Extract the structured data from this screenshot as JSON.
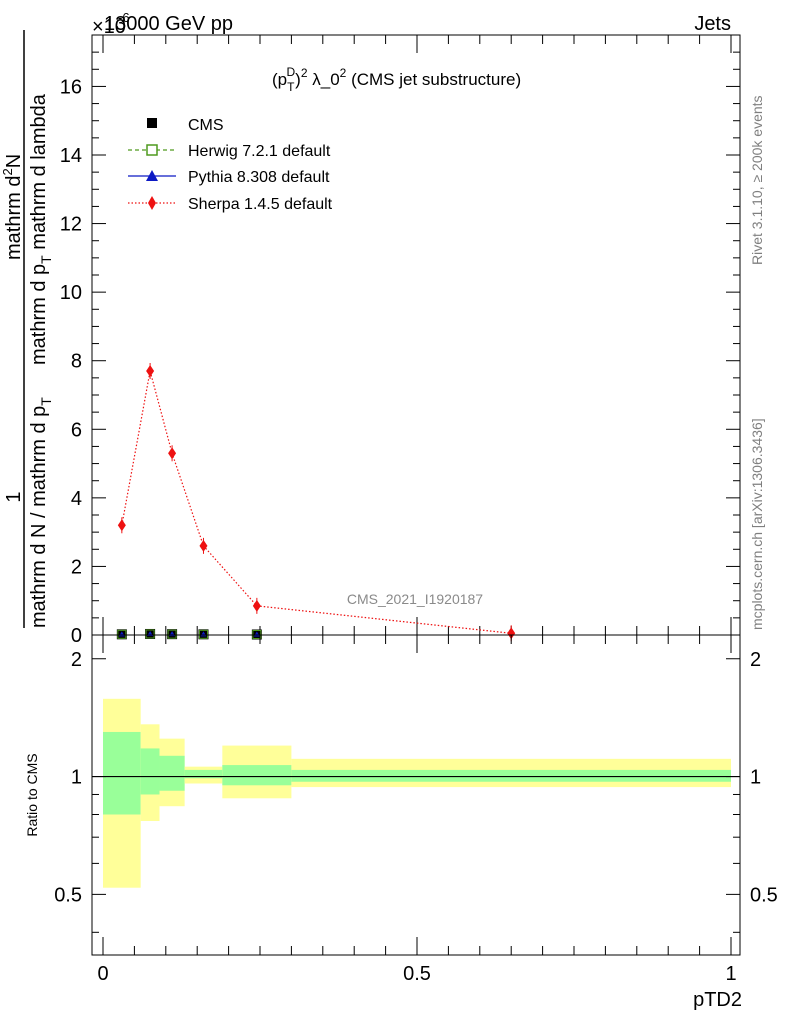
{
  "header": {
    "energy_label": "13000 GeV pp",
    "process_label": "Jets",
    "exponent_label": "×10",
    "exponent_power": "-6"
  },
  "side_labels": {
    "rivet": "Rivet 3.1.10, ≥ 200k events",
    "mcplots": "mcplots.cern.ch [arXiv:1306.3436]"
  },
  "chart_data": {
    "type": "line",
    "title": "(p_T^D)^2 λ_0^2 (CMS jet substructure)",
    "title_parts": {
      "p": "(p",
      "sub_t": "T",
      "sup_d": "D",
      "close": ")",
      "sq1": "2",
      "lambda": "λ_0",
      "sq2": "2",
      "rest": "(CMS jet substructure)"
    },
    "watermark": "CMS_2021_I1920187",
    "xlabel": "pTD2",
    "ylabel": "1 / mathrm d N / mathrm d p_T mathrm d^2N / mathrm d p_T mathrm d lambda",
    "ylabel_parts": {
      "num_one": "1",
      "den": "mathrm d N / mathrm d p",
      "den_sub": "T",
      "den2": "mathrm d p",
      "den2_sub": "T",
      "den2_rest": "mathrm d lambda",
      "num_prefix": "mathrm d",
      "num_sup": "2",
      "num_suffix": "N"
    },
    "xlim": [
      0,
      1
    ],
    "ylim": [
      0,
      17.5
    ],
    "x_ticks": [
      "0",
      "0.5",
      "1"
    ],
    "y_ticks": [
      "0",
      "2",
      "4",
      "6",
      "8",
      "10",
      "12",
      "14",
      "16"
    ],
    "legend": [
      {
        "name": "CMS",
        "marker": "square-filled",
        "color": "#000000"
      },
      {
        "name": "Herwig 7.2.1 default",
        "marker": "square-open",
        "color": "#4f9a1f"
      },
      {
        "name": "Pythia 8.308 default",
        "marker": "triangle",
        "color": "#0c19c4"
      },
      {
        "name": "Sherpa 1.4.5 default",
        "marker": "diamond",
        "color": "#ee1111"
      }
    ],
    "series": [
      {
        "name": "CMS",
        "x": [
          0.03,
          0.075,
          0.11,
          0.16,
          0.245
        ],
        "values": [
          0.02,
          0.03,
          0.025,
          0.02,
          0.015
        ]
      },
      {
        "name": "Herwig 7.2.1 default",
        "x": [
          0.03,
          0.075,
          0.11,
          0.16,
          0.245
        ],
        "values": [
          0.02,
          0.03,
          0.025,
          0.02,
          0.015
        ]
      },
      {
        "name": "Pythia 8.308 default",
        "x": [
          0.03,
          0.075,
          0.11,
          0.16,
          0.245
        ],
        "values": [
          0.02,
          0.03,
          0.025,
          0.02,
          0.015
        ]
      },
      {
        "name": "Sherpa 1.4.5 default",
        "x": [
          0.03,
          0.075,
          0.11,
          0.16,
          0.245,
          0.65
        ],
        "values": [
          3.2,
          7.7,
          5.3,
          2.6,
          0.85,
          0.05
        ]
      }
    ],
    "ratio": {
      "ylabel": "Ratio to CMS",
      "ylim": [
        0.35,
        2.3
      ],
      "y_ticks": [
        "0.5",
        "1",
        "2"
      ],
      "bins": [
        {
          "x0": 0.0,
          "x1": 0.06,
          "inner": [
            0.8,
            1.3
          ],
          "outer": [
            0.52,
            1.58
          ]
        },
        {
          "x0": 0.06,
          "x1": 0.09,
          "inner": [
            0.9,
            1.18
          ],
          "outer": [
            0.77,
            1.36
          ]
        },
        {
          "x0": 0.09,
          "x1": 0.13,
          "inner": [
            0.92,
            1.13
          ],
          "outer": [
            0.84,
            1.25
          ]
        },
        {
          "x0": 0.13,
          "x1": 0.19,
          "inner": [
            0.99,
            1.04
          ],
          "outer": [
            0.96,
            1.06
          ]
        },
        {
          "x0": 0.19,
          "x1": 0.3,
          "inner": [
            0.95,
            1.07
          ],
          "outer": [
            0.88,
            1.2
          ]
        },
        {
          "x0": 0.3,
          "x1": 1.0,
          "inner": [
            0.97,
            1.04
          ],
          "outer": [
            0.94,
            1.11
          ]
        }
      ]
    }
  }
}
